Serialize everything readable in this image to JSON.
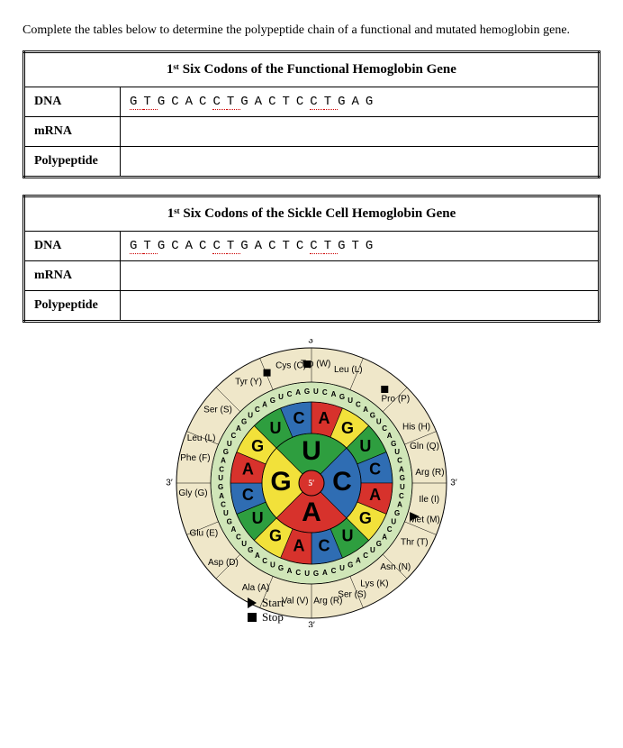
{
  "intro": "Complete the tables below to determine the polypeptide chain of a functional and mutated hemoglobin gene.",
  "table1": {
    "title": "1ˢᵗ Six Codons of the Functional Hemoglobin Gene",
    "rows": {
      "dna_label": "DNA",
      "dna_seq": "GTGCACCTGACTCCTGAG",
      "mrna_label": "mRNA",
      "poly_label": "Polypeptide"
    }
  },
  "table2": {
    "title": "1ˢᵗ Six Codons of the Sickle Cell Hemoglobin Gene",
    "rows": {
      "dna_label": "DNA",
      "dna_seq": "GTGCACCTGACTCCTGTG",
      "mrna_label": "mRNA",
      "poly_label": "Polypeptide"
    }
  },
  "wheel": {
    "center": "5′",
    "ring1": [
      "G",
      "U",
      "A",
      "C"
    ],
    "ring2": [
      "G",
      "U",
      "C",
      "A",
      "G",
      "U",
      "C",
      "A",
      "G",
      "U",
      "C",
      "A",
      "G",
      "U",
      "C",
      "A"
    ],
    "colors": {
      "G": "#f2e13a",
      "U": "#2e9e3f",
      "A": "#d7322c",
      "C": "#2f6db3",
      "ring3": "#d0e6b8",
      "outer_bg": "#efe7c9",
      "center": "#d7322c"
    },
    "amino": [
      {
        "t": "Gly (G)",
        "a": -95
      },
      {
        "t": "Phe (F)",
        "a": -78
      },
      {
        "t": "Leu (L)",
        "a": -68
      },
      {
        "t": "Ser (S)",
        "a": -52
      },
      {
        "t": "Tyr (Y)",
        "a": -32
      },
      {
        "t": "Cys (C)",
        "a": -10
      },
      {
        "t": "Trp (W)",
        "a": 2
      },
      {
        "t": "Leu (L)",
        "a": 18
      },
      {
        "t": "Pro (P)",
        "a": 45
      },
      {
        "t": "His (H)",
        "a": 62
      },
      {
        "t": "Gln (Q)",
        "a": 72
      },
      {
        "t": "Arg (R)",
        "a": 85
      },
      {
        "t": "Ile (I)",
        "a": 98
      },
      {
        "t": "Met (M)",
        "a": 108
      },
      {
        "t": "Thr (T)",
        "a": 120
      },
      {
        "t": "Asn (N)",
        "a": 135
      },
      {
        "t": "Lys (K)",
        "a": 148
      },
      {
        "t": "Ser (S)",
        "a": 160
      },
      {
        "t": "Arg (R)",
        "a": 172
      },
      {
        "t": "Val (V)",
        "a": -172
      },
      {
        "t": "Ala (A)",
        "a": -152
      },
      {
        "t": "Asp (D)",
        "a": -132
      },
      {
        "t": "Glu (E)",
        "a": -115
      }
    ],
    "stops": [
      -22,
      -2,
      38
    ]
  },
  "legend": {
    "start": "Start",
    "stop": "Stop"
  },
  "prime3_top": "3′",
  "prime3_left": "3′",
  "prime3_right": "3′",
  "prime3_bot": "3′"
}
